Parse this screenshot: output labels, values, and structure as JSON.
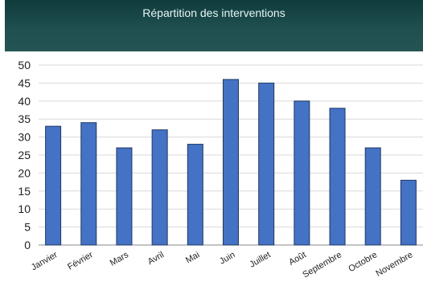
{
  "chart_data": {
    "type": "bar",
    "title": "Répartition des interventions",
    "xlabel": "",
    "ylabel": "",
    "categories": [
      "Janvier",
      "Février",
      "Mars",
      "Avril",
      "Mai",
      "Juin",
      "Juillet",
      "Août",
      "Septembre",
      "Octobre",
      "Novembre"
    ],
    "values": [
      33,
      34,
      27,
      32,
      28,
      46,
      45,
      40,
      38,
      27,
      18
    ],
    "ylim": [
      0,
      50
    ],
    "yticks": [
      0,
      5,
      10,
      15,
      20,
      25,
      30,
      35,
      40,
      45,
      50
    ],
    "grid": true,
    "legend": "none",
    "colors": {
      "bar_fill": "#4472c4",
      "bar_stroke": "#1f3864",
      "header_bg": "#1f4f4f",
      "grid": "#d9d9d9"
    }
  }
}
